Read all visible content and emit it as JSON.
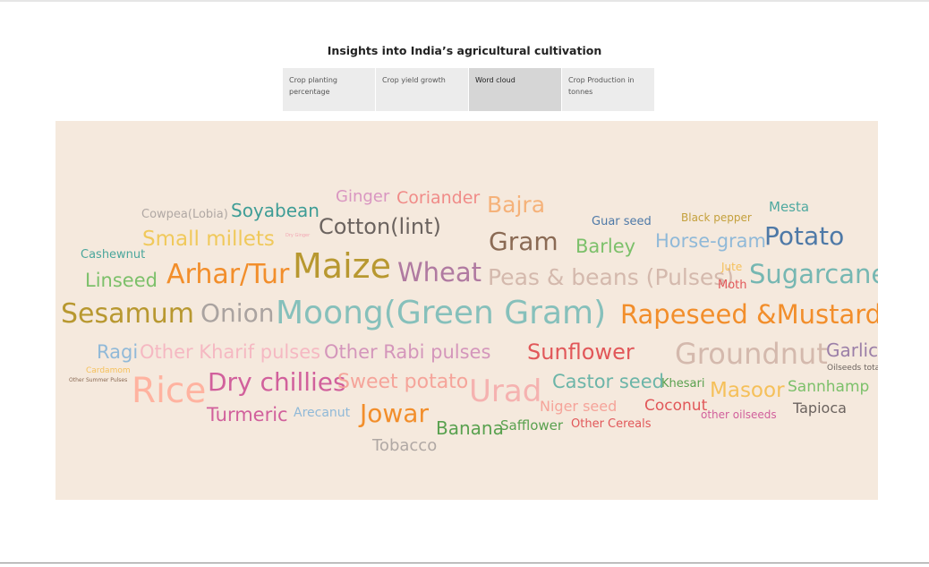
{
  "page": {
    "title": "Insights into India’s agricultural cultivation"
  },
  "tabs": [
    {
      "label": "Crop planting percentage",
      "active": false
    },
    {
      "label": "Crop yield growth",
      "active": false
    },
    {
      "label": "Word cloud",
      "active": true
    },
    {
      "label": "Crop Production in tonnes",
      "active": false
    }
  ],
  "word_cloud": {
    "background": "#f5e9dd",
    "words": [
      {
        "text": "Ginger",
        "color": "#d996c1"
      },
      {
        "text": "Coriander",
        "color": "#f08b88"
      },
      {
        "text": "Bajra",
        "color": "#f5b27a"
      },
      {
        "text": "Mesta",
        "color": "#4fa9a0"
      },
      {
        "text": "Cowpea(Lobia)",
        "color": "#b0a8a4"
      },
      {
        "text": "Soyabean",
        "color": "#3e9d96"
      },
      {
        "text": "Guar seed",
        "color": "#4e79a7"
      },
      {
        "text": "Black pepper",
        "color": "#c4a03c"
      },
      {
        "text": "Cotton(lint)",
        "color": "#6b635f"
      },
      {
        "text": "Small millets",
        "color": "#f0c95b"
      },
      {
        "text": "Dry Ginger",
        "color": "#f2a6b3"
      },
      {
        "text": "Gram",
        "color": "#8a6a54"
      },
      {
        "text": "Barley",
        "color": "#7cc06a"
      },
      {
        "text": "Horse-gram",
        "color": "#90b9d8"
      },
      {
        "text": "Potato",
        "color": "#4e79a7"
      },
      {
        "text": "Cashewnut",
        "color": "#4aa69c"
      },
      {
        "text": "Linseed",
        "color": "#7cc06a"
      },
      {
        "text": "Arhar/Tur",
        "color": "#f28e2b"
      },
      {
        "text": "Maize",
        "color": "#b89830"
      },
      {
        "text": "Wheat",
        "color": "#b07aa1"
      },
      {
        "text": "Peas & beans (Pulses)",
        "color": "#d4b9ad"
      },
      {
        "text": "Jute",
        "color": "#f5c05a"
      },
      {
        "text": "Moth",
        "color": "#e15759"
      },
      {
        "text": "Sugarcane",
        "color": "#76b7b2"
      },
      {
        "text": "Sesamum",
        "color": "#b89830"
      },
      {
        "text": "Onion",
        "color": "#aaa3a0"
      },
      {
        "text": "Moong(Green Gram)",
        "color": "#86c0bb"
      },
      {
        "text": "Rapeseed &Mustard",
        "color": "#f28e2b"
      },
      {
        "text": "Ragi",
        "color": "#90b9d8"
      },
      {
        "text": "Other Kharif pulses",
        "color": "#f5b8c2"
      },
      {
        "text": "Other Rabi pulses",
        "color": "#d496bb"
      },
      {
        "text": "Sunflower",
        "color": "#e15759"
      },
      {
        "text": "Groundnut",
        "color": "#d4b9ad"
      },
      {
        "text": "Garlic",
        "color": "#9b7fa8"
      },
      {
        "text": "Oilseeds total",
        "color": "#6b635f"
      },
      {
        "text": "Cardamom",
        "color": "#f5c05a"
      },
      {
        "text": "Other Summer Pulses",
        "color": "#8a6a54"
      },
      {
        "text": "Rice",
        "color": "#ffb3a0"
      },
      {
        "text": "Dry chillies",
        "color": "#d1609c"
      },
      {
        "text": "Sweet potato",
        "color": "#f5a49a"
      },
      {
        "text": "Urad",
        "color": "#f5b2b0"
      },
      {
        "text": "Castor seed",
        "color": "#6cb5a8"
      },
      {
        "text": "Khesari",
        "color": "#59a14f"
      },
      {
        "text": "Masoor",
        "color": "#f5c05a"
      },
      {
        "text": "Sannhamp",
        "color": "#7cc06a"
      },
      {
        "text": "Niger seed",
        "color": "#f5a49a"
      },
      {
        "text": "Coconut",
        "color": "#e15759"
      },
      {
        "text": "other oilseeds",
        "color": "#d1609c"
      },
      {
        "text": "Tapioca",
        "color": "#6b635f"
      },
      {
        "text": "Turmeric",
        "color": "#d1609c"
      },
      {
        "text": "Arecanut",
        "color": "#90b9d8"
      },
      {
        "text": "Jowar",
        "color": "#f28e2b"
      },
      {
        "text": "Banana",
        "color": "#59a14f"
      },
      {
        "text": "Safflower",
        "color": "#59a14f"
      },
      {
        "text": "Other Cereals",
        "color": "#e15759"
      },
      {
        "text": "Tobacco",
        "color": "#b0a8a4"
      }
    ]
  }
}
